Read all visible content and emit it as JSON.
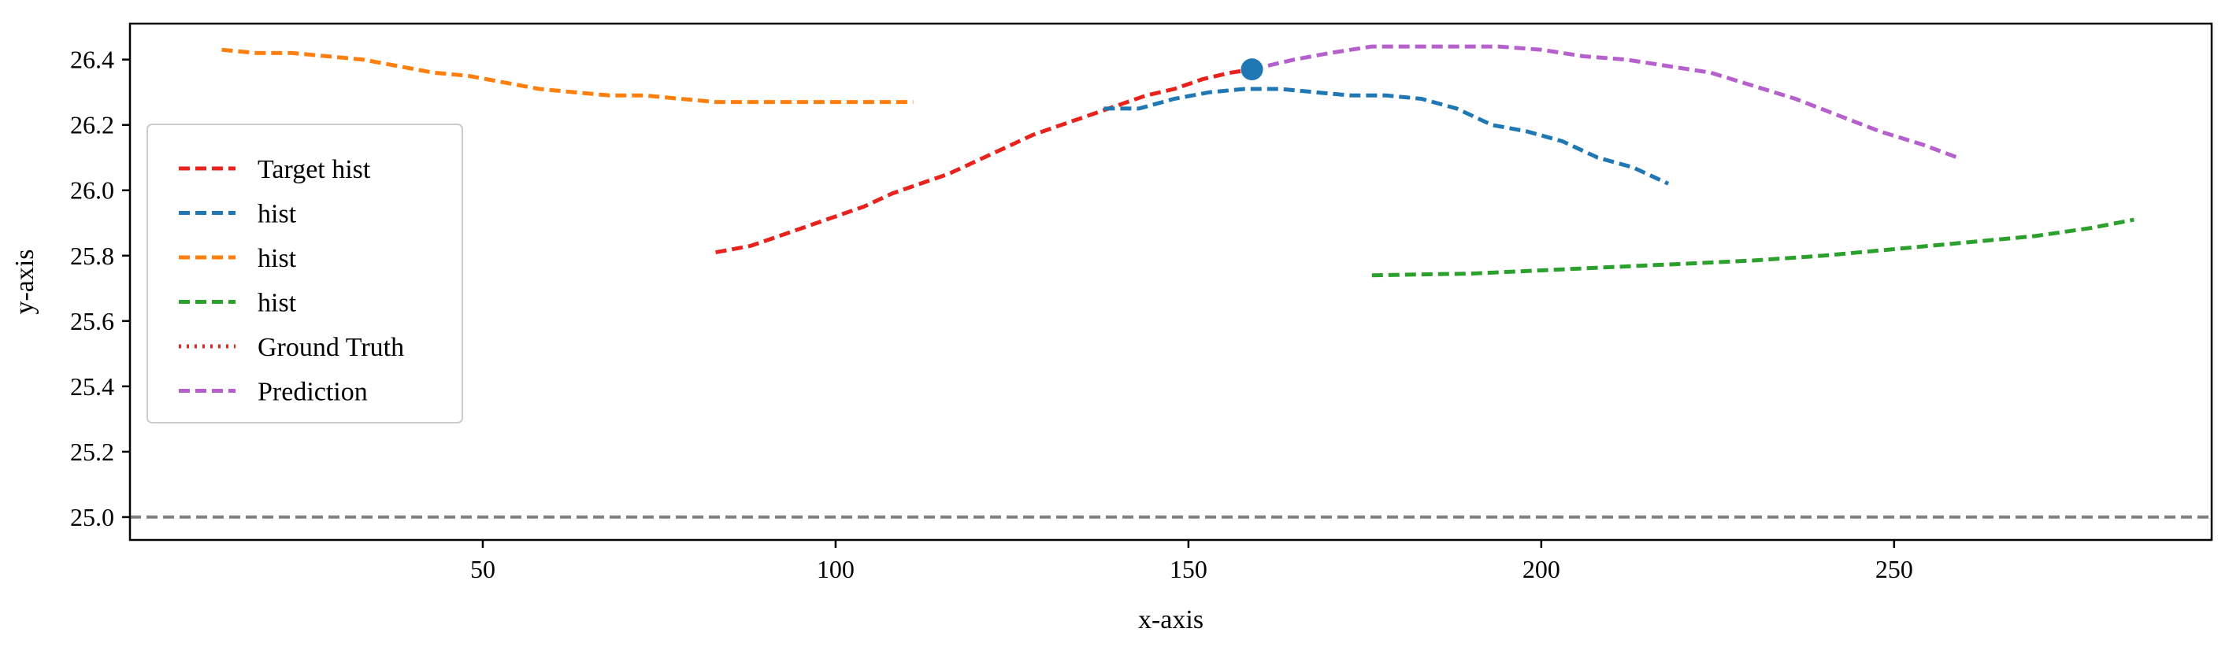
{
  "chart_data": {
    "type": "line",
    "xlabel": "x-axis",
    "ylabel": "y-axis",
    "xlim": [
      0,
      295
    ],
    "ylim": [
      24.93,
      26.51
    ],
    "x_ticks": [
      50,
      100,
      150,
      200,
      250
    ],
    "y_ticks": [
      25.0,
      25.2,
      25.4,
      25.6,
      25.8,
      26.0,
      26.2,
      26.4
    ],
    "x_tick_labels": [
      "50",
      "100",
      "150",
      "200",
      "250"
    ],
    "y_tick_labels": [
      "25.0",
      "25.2",
      "25.4",
      "25.6",
      "25.8",
      "26.0",
      "26.2",
      "26.4"
    ],
    "grid": false,
    "legend_position": "center-left",
    "series": [
      {
        "name": "Target hist",
        "color": "#e8231d",
        "style": "dashed",
        "x": [
          83,
          88,
          92,
          96,
          100,
          104,
          108,
          112,
          116,
          120,
          124,
          128,
          132,
          136,
          140,
          144,
          148,
          152,
          156,
          159
        ],
        "y": [
          25.81,
          25.83,
          25.86,
          25.89,
          25.92,
          25.95,
          25.99,
          26.02,
          26.05,
          26.09,
          26.13,
          26.17,
          26.2,
          26.23,
          26.26,
          26.29,
          26.31,
          26.34,
          26.36,
          26.37
        ]
      },
      {
        "name": "hist",
        "color": "#1f77b4",
        "style": "dashed",
        "x": [
          138,
          143,
          148,
          153,
          158,
          163,
          168,
          173,
          178,
          183,
          188,
          193,
          198,
          203,
          208,
          213,
          218
        ],
        "y": [
          26.25,
          26.25,
          26.28,
          26.3,
          26.31,
          26.31,
          26.3,
          26.29,
          26.29,
          26.28,
          26.25,
          26.2,
          26.18,
          26.15,
          26.1,
          26.07,
          26.02
        ]
      },
      {
        "name": "hist",
        "color": "#ff7f0e",
        "style": "dashed",
        "x": [
          13,
          18,
          23,
          28,
          33,
          38,
          43,
          48,
          53,
          58,
          63,
          68,
          73,
          78,
          83,
          88,
          93,
          98,
          103,
          108,
          111
        ],
        "y": [
          26.43,
          26.42,
          26.42,
          26.41,
          26.4,
          26.38,
          26.36,
          26.35,
          26.33,
          26.31,
          26.3,
          26.29,
          26.29,
          26.28,
          26.27,
          26.27,
          26.27,
          26.27,
          26.27,
          26.27,
          26.27
        ]
      },
      {
        "name": "hist",
        "color": "#2ca02c",
        "style": "dashed",
        "x": [
          176,
          190,
          200,
          210,
          220,
          230,
          240,
          250,
          260,
          270,
          278,
          284
        ],
        "y": [
          25.74,
          25.745,
          25.755,
          25.765,
          25.775,
          25.785,
          25.8,
          25.82,
          25.84,
          25.86,
          25.885,
          25.91
        ]
      },
      {
        "name": "Ground Truth",
        "color": "#e8231d",
        "style": "dotted",
        "x": [],
        "y": []
      },
      {
        "name": "Prediction",
        "color": "#b660cd",
        "style": "dashed",
        "x": [
          159,
          165,
          170,
          176,
          182,
          188,
          194,
          200,
          206,
          212,
          218,
          224,
          230,
          236,
          242,
          248,
          254,
          259
        ],
        "y": [
          26.37,
          26.4,
          26.42,
          26.44,
          26.44,
          26.44,
          26.44,
          26.43,
          26.41,
          26.4,
          26.38,
          26.36,
          26.32,
          26.28,
          26.23,
          26.18,
          26.14,
          26.1
        ]
      }
    ],
    "markers": [
      {
        "x": 159,
        "y": 26.37,
        "color": "#1f77b4"
      }
    ],
    "reference_lines": [
      {
        "axis": "y",
        "value": 25.0,
        "color": "#808080",
        "style": "dashed"
      }
    ]
  }
}
